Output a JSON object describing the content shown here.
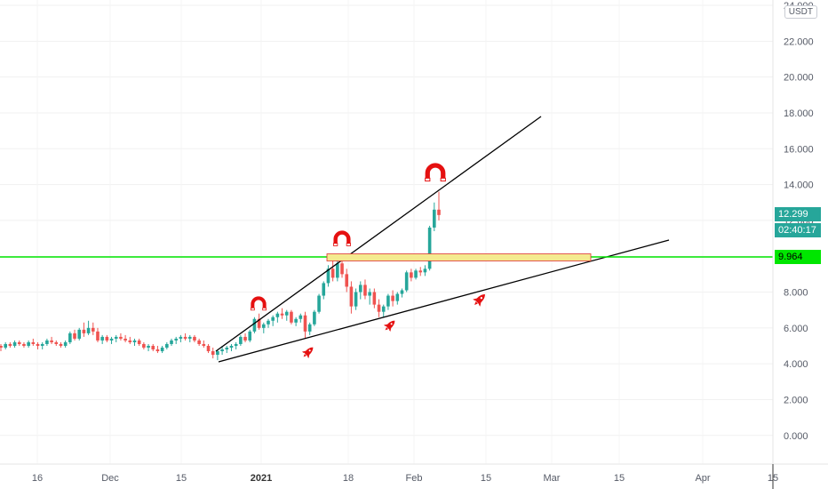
{
  "currency_label": "USDT",
  "last_price": "12.299",
  "countdown": "02:40:17",
  "level_price": "9.964",
  "colors": {
    "up": "#26a69a",
    "down": "#ef5350",
    "level_line": "#00e600",
    "trend_line": "#000000",
    "zone_fill": "#f4ea8f",
    "zone_border": "#d33",
    "icons": "#e51010"
  },
  "chart_data": {
    "type": "candlestick",
    "y_ticks": [
      "0.000",
      "2.000",
      "4.000",
      "6.000",
      "8.000",
      "10.000",
      "12.000",
      "14.000",
      "16.000",
      "18.000",
      "20.000",
      "22.000",
      "24.000"
    ],
    "x_ticks": [
      "16",
      "Dec",
      "15",
      "2021",
      "18",
      "Feb",
      "15",
      "Mar",
      "15",
      "Apr",
      "15"
    ],
    "ylim": [
      -1.6,
      24.3
    ],
    "candles": [
      [
        5.0,
        5.1,
        4.7,
        4.9
      ],
      [
        4.9,
        5.2,
        4.8,
        5.1
      ],
      [
        5.1,
        5.2,
        4.9,
        5.0
      ],
      [
        5.0,
        5.3,
        4.9,
        5.2
      ],
      [
        5.2,
        5.3,
        5.0,
        5.1
      ],
      [
        5.1,
        5.2,
        4.9,
        5.0
      ],
      [
        5.0,
        5.3,
        4.9,
        5.2
      ],
      [
        5.2,
        5.4,
        5.0,
        5.1
      ],
      [
        5.1,
        5.2,
        4.8,
        5.0
      ],
      [
        5.0,
        5.2,
        4.8,
        5.1
      ],
      [
        5.1,
        5.4,
        5.0,
        5.3
      ],
      [
        5.3,
        5.5,
        5.1,
        5.2
      ],
      [
        5.2,
        5.3,
        5.0,
        5.1
      ],
      [
        5.1,
        5.2,
        4.9,
        5.0
      ],
      [
        5.0,
        5.3,
        4.9,
        5.2
      ],
      [
        5.2,
        5.8,
        5.1,
        5.7
      ],
      [
        5.7,
        5.9,
        5.3,
        5.4
      ],
      [
        5.4,
        6.0,
        5.3,
        5.9
      ],
      [
        5.9,
        6.3,
        5.5,
        5.7
      ],
      [
        5.7,
        6.4,
        5.6,
        6.0
      ],
      [
        6.0,
        6.3,
        5.6,
        5.8
      ],
      [
        5.8,
        6.0,
        5.2,
        5.3
      ],
      [
        5.3,
        5.6,
        5.1,
        5.5
      ],
      [
        5.5,
        5.6,
        5.2,
        5.3
      ],
      [
        5.3,
        5.5,
        5.1,
        5.4
      ],
      [
        5.4,
        5.6,
        5.2,
        5.5
      ],
      [
        5.5,
        5.7,
        5.3,
        5.4
      ],
      [
        5.4,
        5.6,
        5.2,
        5.3
      ],
      [
        5.3,
        5.5,
        5.1,
        5.2
      ],
      [
        5.2,
        5.4,
        5.0,
        5.3
      ],
      [
        5.3,
        5.4,
        5.0,
        5.1
      ],
      [
        5.1,
        5.2,
        4.8,
        4.9
      ],
      [
        4.9,
        5.1,
        4.7,
        5.0
      ],
      [
        5.0,
        5.1,
        4.7,
        4.8
      ],
      [
        4.8,
        5.0,
        4.6,
        4.7
      ],
      [
        4.7,
        5.0,
        4.6,
        4.9
      ],
      [
        4.9,
        5.2,
        4.8,
        5.1
      ],
      [
        5.1,
        5.4,
        5.0,
        5.3
      ],
      [
        5.3,
        5.5,
        5.1,
        5.4
      ],
      [
        5.4,
        5.6,
        5.2,
        5.5
      ],
      [
        5.5,
        5.7,
        5.3,
        5.4
      ],
      [
        5.4,
        5.6,
        5.2,
        5.5
      ],
      [
        5.5,
        5.6,
        5.2,
        5.3
      ],
      [
        5.3,
        5.4,
        5.0,
        5.1
      ],
      [
        5.1,
        5.3,
        4.9,
        5.0
      ],
      [
        5.0,
        5.1,
        4.6,
        4.7
      ],
      [
        4.7,
        4.9,
        4.3,
        4.5
      ],
      [
        4.5,
        4.8,
        4.2,
        4.7
      ],
      [
        4.7,
        5.0,
        4.5,
        4.8
      ],
      [
        4.8,
        5.0,
        4.6,
        4.9
      ],
      [
        4.9,
        5.1,
        4.7,
        5.0
      ],
      [
        5.0,
        5.2,
        4.8,
        5.1
      ],
      [
        5.1,
        5.6,
        5.0,
        5.5
      ],
      [
        5.5,
        5.7,
        5.2,
        5.3
      ],
      [
        5.3,
        5.9,
        5.2,
        5.8
      ],
      [
        5.8,
        6.6,
        5.7,
        6.5
      ],
      [
        6.5,
        6.8,
        5.9,
        6.0
      ],
      [
        6.0,
        6.3,
        5.7,
        6.2
      ],
      [
        6.2,
        6.5,
        6.0,
        6.4
      ],
      [
        6.4,
        6.7,
        6.1,
        6.6
      ],
      [
        6.6,
        6.9,
        6.3,
        6.8
      ],
      [
        6.8,
        7.1,
        6.5,
        6.7
      ],
      [
        6.7,
        7.0,
        6.4,
        6.9
      ],
      [
        6.9,
        7.0,
        6.2,
        6.3
      ],
      [
        6.3,
        6.6,
        6.1,
        6.5
      ],
      [
        6.5,
        6.8,
        6.3,
        6.7
      ],
      [
        6.7,
        6.9,
        5.4,
        5.8
      ],
      [
        5.8,
        6.3,
        5.6,
        6.2
      ],
      [
        6.2,
        7.0,
        6.1,
        6.9
      ],
      [
        6.9,
        7.9,
        6.8,
        7.8
      ],
      [
        7.8,
        8.6,
        7.6,
        8.5
      ],
      [
        8.5,
        9.5,
        8.3,
        9.3
      ],
      [
        9.3,
        9.8,
        8.6,
        8.8
      ],
      [
        8.8,
        9.9,
        8.6,
        9.6
      ],
      [
        9.6,
        9.9,
        8.8,
        9.0
      ],
      [
        9.0,
        9.3,
        8.0,
        8.3
      ],
      [
        8.3,
        8.6,
        6.8,
        7.2
      ],
      [
        7.2,
        8.2,
        7.0,
        8.0
      ],
      [
        8.0,
        8.6,
        7.6,
        8.4
      ],
      [
        8.4,
        8.7,
        7.6,
        7.8
      ],
      [
        7.8,
        8.2,
        7.3,
        8.0
      ],
      [
        8.0,
        8.2,
        7.1,
        7.3
      ],
      [
        7.3,
        7.6,
        6.6,
        6.9
      ],
      [
        6.9,
        7.3,
        6.6,
        7.2
      ],
      [
        7.2,
        7.9,
        7.0,
        7.8
      ],
      [
        7.8,
        8.1,
        7.2,
        7.5
      ],
      [
        7.5,
        8.0,
        7.3,
        7.9
      ],
      [
        7.9,
        8.2,
        7.7,
        8.1
      ],
      [
        8.1,
        9.2,
        8.0,
        9.1
      ],
      [
        9.1,
        9.3,
        8.6,
        8.8
      ],
      [
        8.8,
        9.3,
        8.7,
        9.2
      ],
      [
        9.2,
        9.4,
        8.9,
        9.1
      ],
      [
        9.1,
        9.5,
        8.9,
        9.3
      ],
      [
        9.3,
        11.7,
        9.2,
        11.6
      ],
      [
        11.6,
        13.0,
        11.4,
        12.6
      ],
      [
        12.6,
        13.6,
        12.0,
        12.3
      ]
    ],
    "annotations": {
      "horizontal_level": 9.964,
      "zone": [
        9.75,
        10.2
      ]
    }
  }
}
